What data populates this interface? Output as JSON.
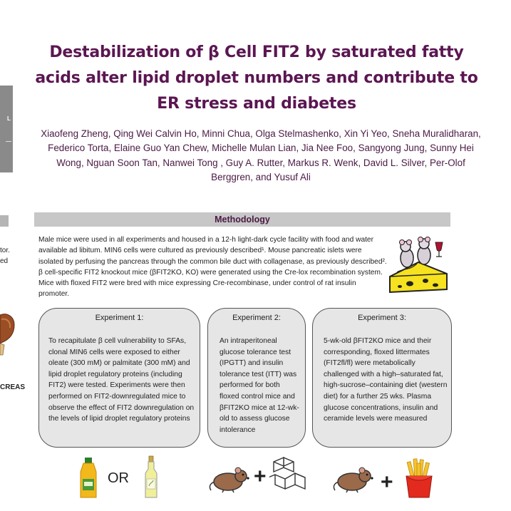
{
  "title": "Destabilization of β Cell FIT2 by saturated fatty acids alter lipid droplet numbers and contribute to ER stress and diabetes",
  "authors": "Xiaofeng Zheng, Qing Wei Calvin Ho, Minni Chua, Olga Stelmashenko, Xin Yi Yeo, Sneha Muralidharan, Federico Torta, Elaine Guo Yan Chew, Michelle Mulan Lian, Jia Nee Foo, Sangyong Jung, Sunny Hei Wong, Nguan Soon Tan, Nanwei Tong , Guy A. Rutter, Markus R. Wenk, David L. Silver, Per-Olof Berggren, and Yusuf Ali",
  "left_fragments": {
    "bar_letter": "L",
    "line1": "tor.",
    "line2": "ed",
    "pancreas_label": "CREAS"
  },
  "methodology": {
    "heading": "Methodology",
    "text": "Male mice were used in all experiments and housed in a 12-h light-dark cycle facility with food and water available ad libitum. MIN6 cells were cultured as previously described¹. Mouse pancreatic islets were isolated by perfusing the pancreas through the common bile duct with collagenase, as previously described². β cell-specific FIT2 knockout mice (βFIT2KO, KO) were generated using the Cre-lox recombination system. Mice with floxed FIT2 were bred with mice expressing Cre-recombinase, under control of rat insulin promoter."
  },
  "experiments": [
    {
      "title": "Experiment 1:",
      "body": "To recapitulate β cell vulnerability to SFAs, clonal  MIN6 cells were exposed to either oleate (300 mM) or palmitate (300 mM) and lipid droplet regulatory proteins (including FIT2) were tested. Experiments were then performed on FIT2-downregulated mice to observe the effect of FIT2 downregulation on the levels of lipid droplet regulatory proteins"
    },
    {
      "title": "Experiment 2:",
      "body": "An intraperitoneal glucose tolerance test (IPGTT) and insulin tolerance test (ITT) was performed for both floxed control mice and βFIT2KO mice at 12-wk-old to assess glucose intolerance"
    },
    {
      "title": "Experiment 3:",
      "body": "5-wk-old βFIT2KO mice and their corresponding, floxed littermates (FIT2fl/fl) were metabolically challenged with a high–saturated fat, high-sucrose–containing diet (western diet) for a further 25 wks. Plasma glucose concentrations, insulin and ceramide levels were measured"
    }
  ],
  "bottom": {
    "or_label": "OR",
    "plus_label": "+"
  },
  "colors": {
    "title": "#5b1652",
    "bar": "#c7c7c7",
    "box": "#e6e6e6"
  }
}
